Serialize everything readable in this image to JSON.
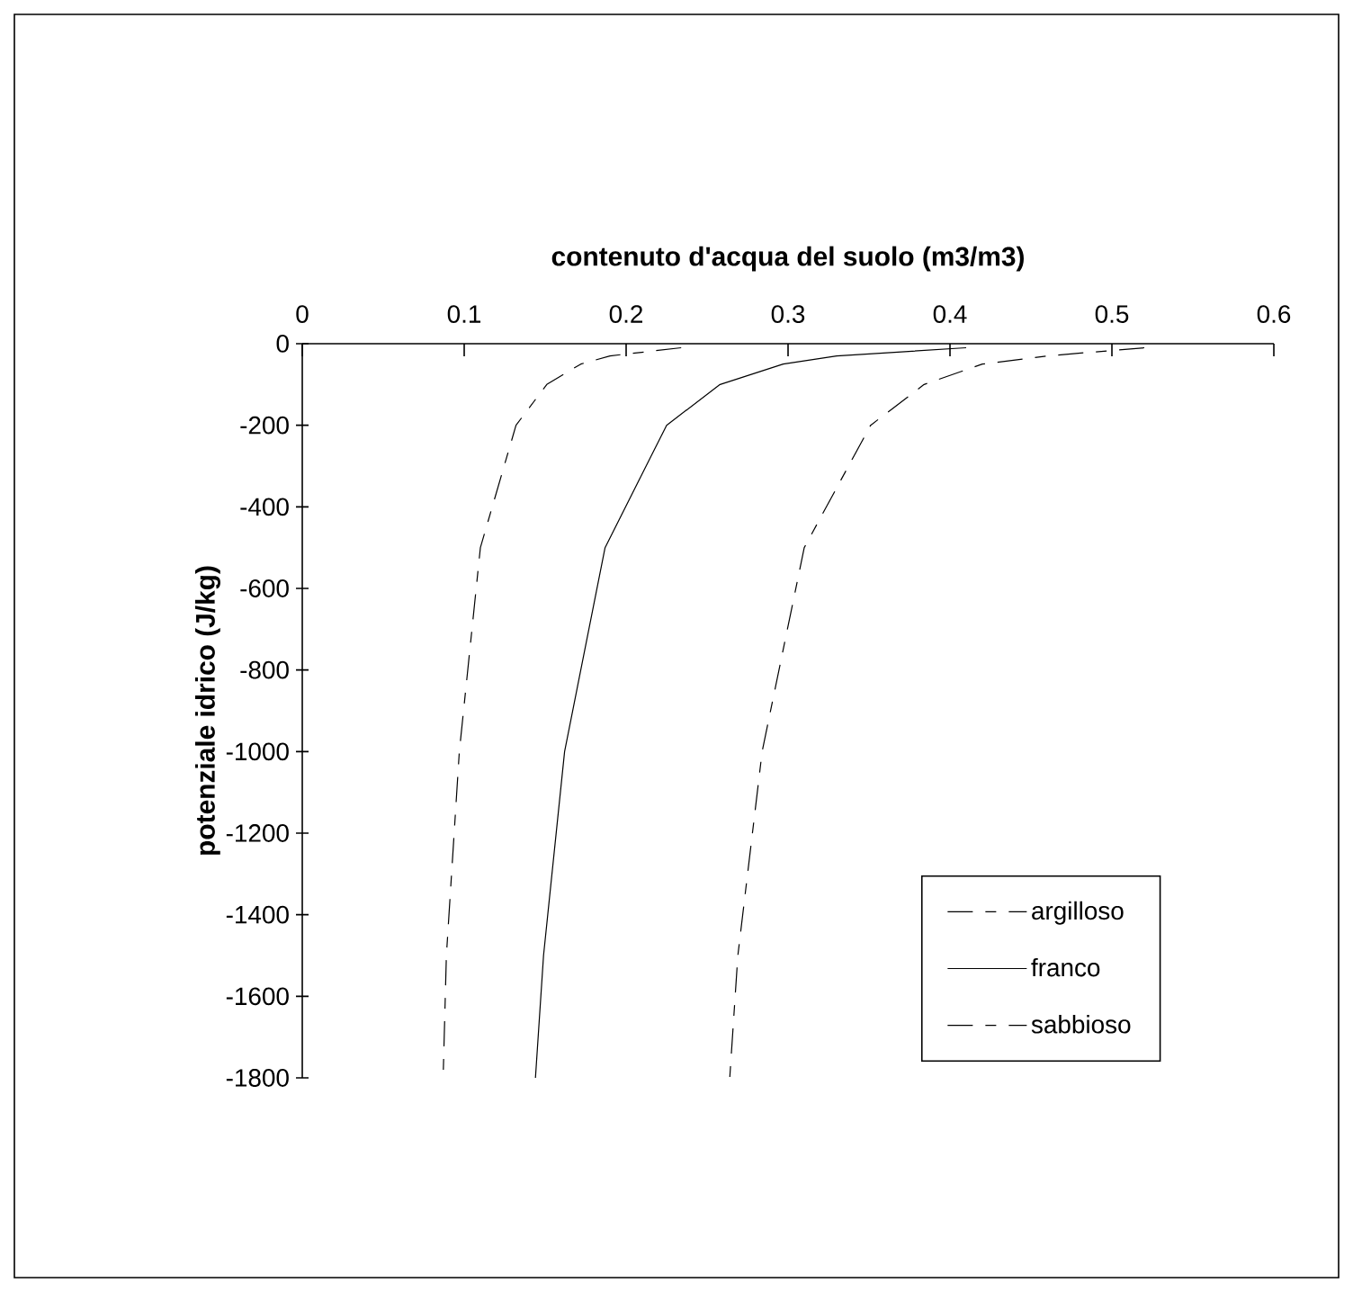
{
  "chart_data": {
    "type": "line",
    "xlabel": "contenuto d'acqua del suolo   (m3/m3)",
    "ylabel": "potenziale idrico  (J/kg)",
    "xlim": [
      0,
      0.6
    ],
    "xticks": [
      0,
      0.1,
      0.2,
      0.3,
      0.4,
      0.5,
      0.6
    ],
    "ylim": [
      -1800,
      0
    ],
    "yticks": [
      -1800,
      -1600,
      -1400,
      -1200,
      -1000,
      -800,
      -600,
      -400,
      -200,
      0
    ],
    "legend": "right",
    "grid": false,
    "marker": "none",
    "series": [
      {
        "name": "argilloso",
        "color": "#000000",
        "line_style": "dashed",
        "x": [
          0.52,
          0.46,
          0.42,
          0.384,
          0.351,
          0.31,
          0.284,
          0.269,
          0.264
        ],
        "values": [
          -10,
          -30,
          -50,
          -100,
          -200,
          -500,
          -1000,
          -1500,
          -1800
        ]
      },
      {
        "name": "franco",
        "color": "#000000",
        "line_style": "solid",
        "x": [
          0.41,
          0.33,
          0.297,
          0.258,
          0.225,
          0.187,
          0.162,
          0.149,
          0.144
        ],
        "values": [
          -10,
          -30,
          -50,
          -100,
          -200,
          -500,
          -1000,
          -1500,
          -1800
        ]
      },
      {
        "name": "sabbioso",
        "color": "#000000",
        "line_style": "dashed",
        "x": [
          0.234,
          0.19,
          0.172,
          0.151,
          0.132,
          0.11,
          0.097,
          0.089,
          0.087
        ],
        "values": [
          -10,
          -30,
          -50,
          -100,
          -200,
          -500,
          -1000,
          -1500,
          -1800
        ]
      }
    ]
  }
}
